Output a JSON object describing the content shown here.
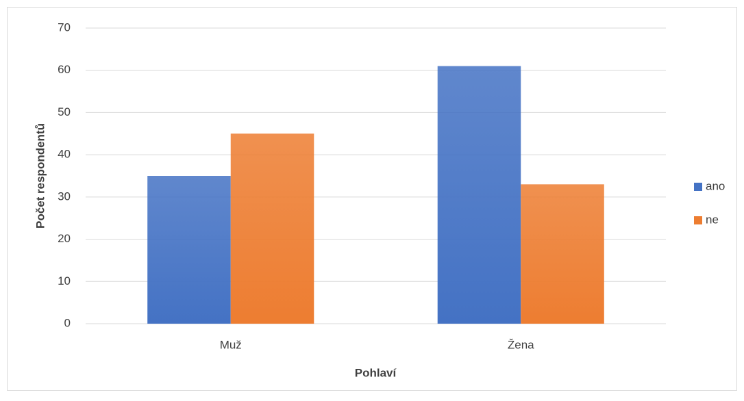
{
  "chart_data": {
    "type": "bar",
    "x_label": "Pohlaví",
    "y_label": "Počet respondentů",
    "categories": [
      "Muž",
      "Žena"
    ],
    "series": [
      {
        "name": "ano",
        "color": "#4472c4",
        "values": [
          35,
          61
        ]
      },
      {
        "name": "ne",
        "color": "#ed7d31",
        "values": [
          45,
          33
        ]
      }
    ],
    "ylim": [
      0,
      70
    ],
    "yticks": [
      0,
      10,
      20,
      30,
      40,
      50,
      60,
      70
    ],
    "grid": true,
    "legend": "right"
  }
}
